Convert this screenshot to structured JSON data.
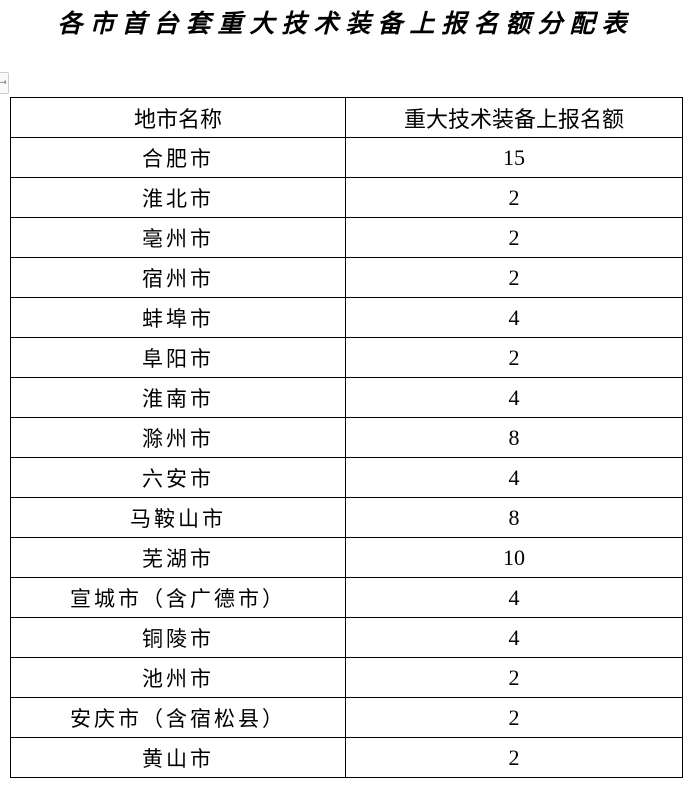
{
  "title": "各市首台套重大技术装备上报名额分配表",
  "table": {
    "headers": [
      "地市名称",
      "重大技术装备上报名额"
    ],
    "rows": [
      {
        "city": "合肥市",
        "quota": "15"
      },
      {
        "city": "淮北市",
        "quota": "2"
      },
      {
        "city": "亳州市",
        "quota": "2"
      },
      {
        "city": "宿州市",
        "quota": "2"
      },
      {
        "city": "蚌埠市",
        "quota": "4"
      },
      {
        "city": "阜阳市",
        "quota": "2"
      },
      {
        "city": "淮南市",
        "quota": "4"
      },
      {
        "city": "滁州市",
        "quota": "8"
      },
      {
        "city": "六安市",
        "quota": "4"
      },
      {
        "city": "马鞍山市",
        "quota": "8"
      },
      {
        "city": "芜湖市",
        "quota": "10"
      },
      {
        "city": "宣城市（含广德市）",
        "quota": "4"
      },
      {
        "city": "铜陵市",
        "quota": "4"
      },
      {
        "city": "池州市",
        "quota": "2"
      },
      {
        "city": "安庆市（含宿松县）",
        "quota": "2"
      },
      {
        "city": "黄山市",
        "quota": "2"
      }
    ]
  }
}
